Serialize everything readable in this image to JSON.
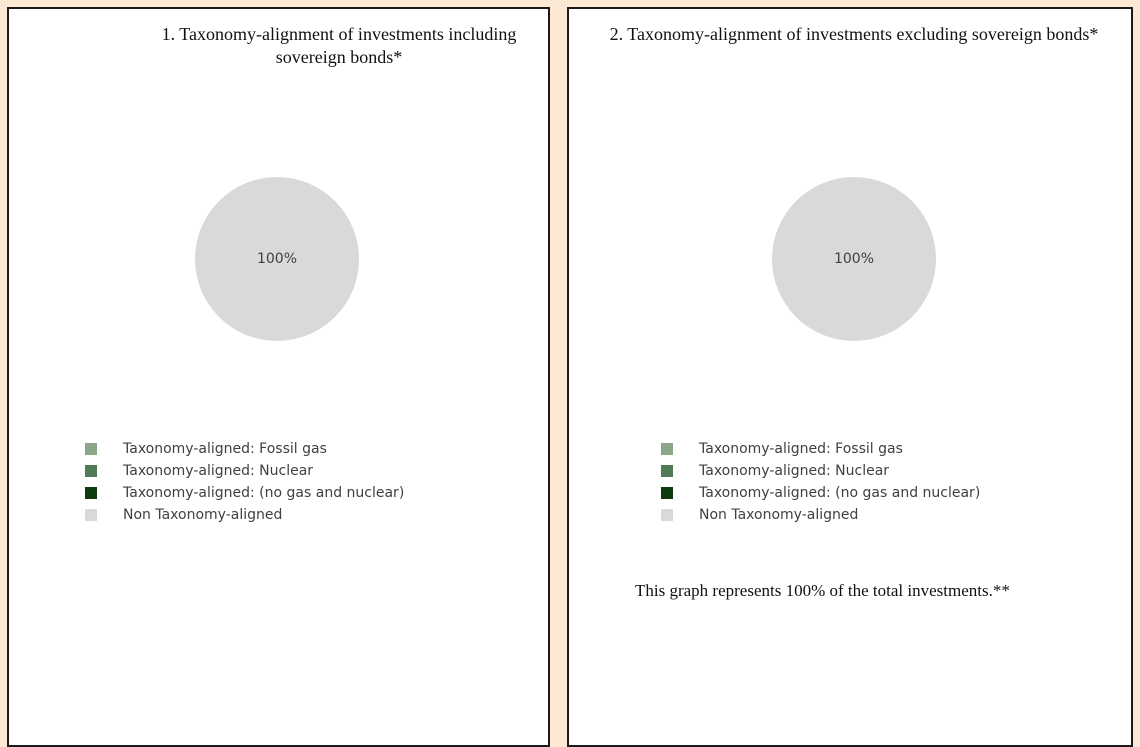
{
  "chart_data": [
    {
      "type": "pie",
      "title": "1. Taxonomy-alignment of investments including sovereign bonds*",
      "categories": [
        "Taxonomy-aligned: Fossil gas",
        "Taxonomy-aligned: Nuclear",
        "Taxonomy-aligned: (no gas and nuclear)",
        "Non Taxonomy-aligned"
      ],
      "values": [
        0,
        0,
        0,
        100
      ],
      "value_labels": [
        null,
        null,
        null,
        "100%"
      ],
      "colors": [
        "#8ca68a",
        "#4f7b57",
        "#0d3b0f",
        "#d9d9d9"
      ]
    },
    {
      "type": "pie",
      "title": "2. Taxonomy-alignment of investments excluding sovereign bonds*",
      "categories": [
        "Taxonomy-aligned: Fossil gas",
        "Taxonomy-aligned: Nuclear",
        "Taxonomy-aligned: (no gas and nuclear)",
        "Non Taxonomy-aligned"
      ],
      "values": [
        0,
        0,
        0,
        100
      ],
      "value_labels": [
        null,
        null,
        null,
        "100%"
      ],
      "colors": [
        "#8ca68a",
        "#4f7b57",
        "#0d3b0f",
        "#d9d9d9"
      ],
      "annotation": "This graph represents 100% of the total investments.**"
    }
  ]
}
